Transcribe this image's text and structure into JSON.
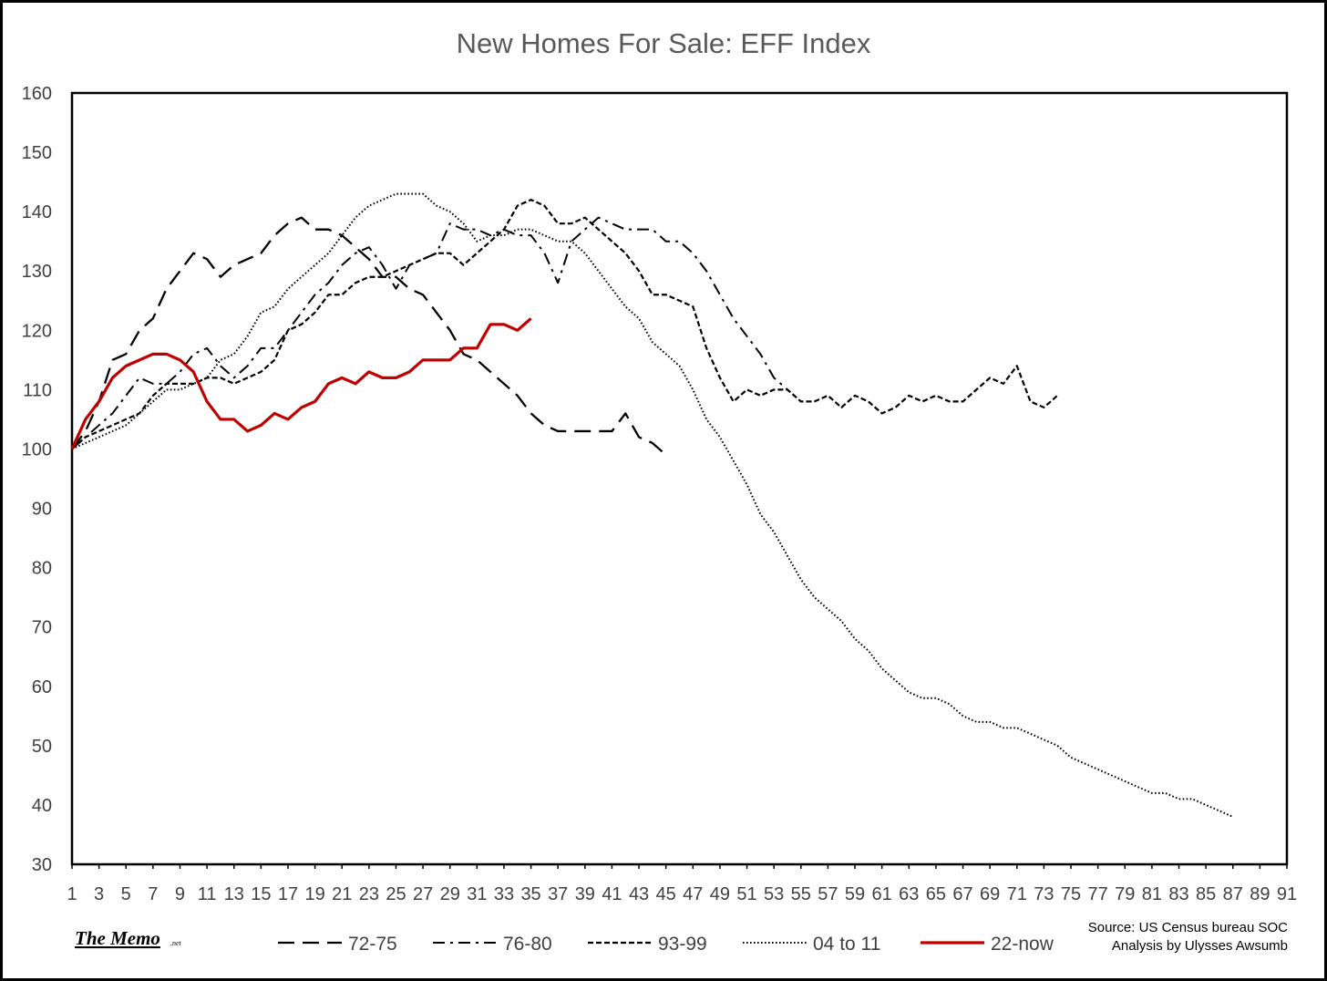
{
  "chart_data": {
    "type": "line",
    "title": "New Homes For Sale: EFF Index",
    "xlabel": "",
    "ylabel": "",
    "ylim": [
      30,
      160
    ],
    "yticks": [
      30,
      40,
      50,
      60,
      70,
      80,
      90,
      100,
      110,
      120,
      130,
      140,
      150,
      160
    ],
    "xlim": [
      1,
      91
    ],
    "xticks": [
      1,
      3,
      5,
      7,
      9,
      11,
      13,
      15,
      17,
      19,
      21,
      23,
      25,
      27,
      29,
      31,
      33,
      35,
      37,
      39,
      41,
      43,
      45,
      47,
      49,
      51,
      53,
      55,
      57,
      59,
      61,
      63,
      65,
      67,
      69,
      71,
      73,
      75,
      77,
      79,
      81,
      83,
      85,
      87,
      89,
      91
    ],
    "grid": false,
    "legend_position": "bottom",
    "series": [
      {
        "name": "72-75",
        "color": "#000000",
        "style": "long-dash",
        "values": [
          100,
          103,
          108,
          115,
          116,
          120,
          122,
          127,
          130,
          133,
          132,
          129,
          131,
          132,
          133,
          136,
          138,
          139,
          137,
          137,
          136,
          134,
          132,
          129,
          129,
          127,
          126,
          123,
          120,
          116,
          115,
          113,
          111,
          109,
          106,
          104,
          103,
          103,
          103,
          103,
          103,
          106,
          102,
          101,
          99
        ]
      },
      {
        "name": "76-80",
        "color": "#000000",
        "style": "dash-dot",
        "values": [
          100,
          102,
          104,
          106,
          109,
          112,
          111,
          111,
          113,
          116,
          117,
          114,
          112,
          114,
          117,
          117,
          120,
          123,
          126,
          128,
          131,
          133,
          134,
          131,
          127,
          131,
          132,
          133,
          138,
          137,
          137,
          136,
          137,
          136,
          136,
          133,
          128,
          135,
          137,
          139,
          138,
          137,
          137,
          137,
          135,
          135,
          133,
          130,
          126,
          122,
          119,
          116,
          112,
          110
        ]
      },
      {
        "name": "93-99",
        "color": "#000000",
        "style": "short-dash",
        "values": [
          100,
          102,
          103,
          104,
          105,
          106,
          109,
          111,
          111,
          111,
          112,
          112,
          111,
          112,
          113,
          115,
          120,
          121,
          123,
          126,
          126,
          128,
          129,
          129,
          130,
          131,
          132,
          133,
          133,
          131,
          133,
          135,
          137,
          141,
          142,
          141,
          138,
          138,
          139,
          137,
          135,
          133,
          130,
          126,
          126,
          125,
          124,
          117,
          112,
          108,
          110,
          109,
          110,
          110,
          108,
          108,
          109,
          107,
          109,
          108,
          106,
          107,
          109,
          108,
          109,
          108,
          108,
          110,
          112,
          111,
          114,
          108,
          107,
          109
        ]
      },
      {
        "name": "04 to 11",
        "color": "#000000",
        "style": "dotted",
        "values": [
          100,
          101,
          102,
          103,
          104,
          106,
          108,
          110,
          110,
          111,
          112,
          115,
          116,
          119,
          123,
          124,
          127,
          129,
          131,
          133,
          136,
          139,
          141,
          142,
          143,
          143,
          143,
          141,
          140,
          138,
          135,
          136,
          136,
          137,
          137,
          136,
          135,
          135,
          133,
          130,
          127,
          124,
          122,
          118,
          116,
          114,
          110,
          105,
          102,
          98,
          94,
          89,
          86,
          82,
          78,
          75,
          73,
          71,
          68,
          66,
          63,
          61,
          59,
          58,
          58,
          57,
          55,
          54,
          54,
          53,
          53,
          52,
          51,
          50,
          48,
          47,
          46,
          45,
          44,
          43,
          42,
          42,
          41,
          41,
          40,
          39,
          38
        ]
      },
      {
        "name": "22-now",
        "color": "#C00000",
        "style": "solid",
        "values": [
          100,
          105,
          108,
          112,
          114,
          115,
          116,
          116,
          115,
          113,
          108,
          105,
          105,
          103,
          104,
          106,
          105,
          107,
          108,
          111,
          112,
          111,
          113,
          112,
          112,
          113,
          115,
          115,
          115,
          117,
          117,
          121,
          121,
          120,
          122
        ]
      }
    ]
  },
  "footer": {
    "logo_text": "The Memo",
    "logo_suffix": ".net",
    "source_line1": "Source: US Census bureau SOC",
    "source_line2": "Analysis by Ulysses Awsumb"
  }
}
